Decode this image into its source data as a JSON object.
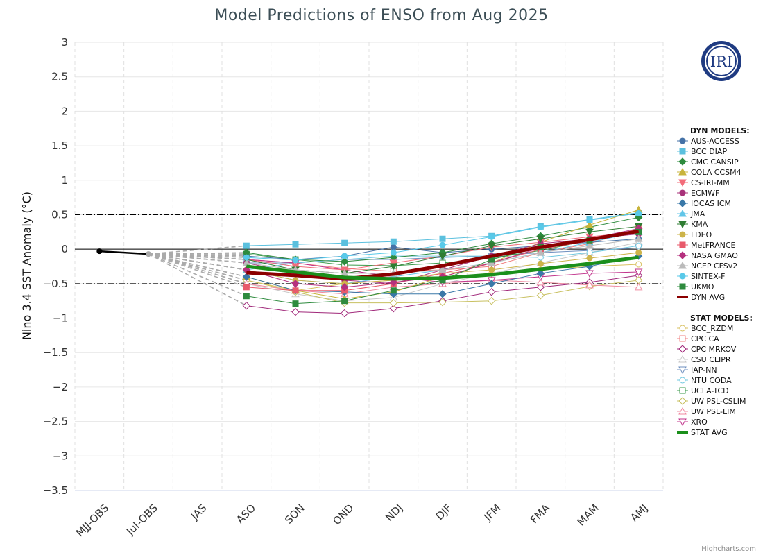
{
  "chart_data": {
    "type": "line",
    "title": "Model Predictions of ENSO from Aug 2025",
    "ylabel": "Nino 3.4 SST Anomaly (°C)",
    "ylim": [
      -3.5,
      3
    ],
    "yticks": [
      "3",
      "2.5",
      "2",
      "1.5",
      "1",
      "0.5",
      "0",
      "−0.5",
      "−1",
      "−1.5",
      "−2",
      "−2.5",
      "−3",
      "−3.5"
    ],
    "ytick_values": [
      3,
      2.5,
      2,
      1.5,
      1,
      0.5,
      0,
      -0.5,
      -1,
      -1.5,
      -2,
      -2.5,
      -3,
      -3.5
    ],
    "reference_lines": [
      0.5,
      -0.5
    ],
    "categories": [
      "MJJ-OBS",
      "Jul-OBS",
      "JAS",
      "ASO",
      "SON",
      "OND",
      "NDJ",
      "DJF",
      "JFM",
      "FMA",
      "MAM",
      "AMJ"
    ],
    "observed": {
      "x": [
        0,
        1
      ],
      "values": [
        -0.03,
        -0.07
      ]
    },
    "dyn_header": "DYN MODELS:",
    "stat_header": "STAT MODELS:",
    "dyn_series": [
      {
        "name": "AUS-ACCESS",
        "color": "#4572a7",
        "marker": "circle",
        "values": [
          -0.1,
          -0.15,
          -0.1,
          0.03,
          -0.05,
          0,
          0.05,
          0.1,
          0.15
        ]
      },
      {
        "name": "BCC DIAP",
        "color": "#5bc0de",
        "marker": "square",
        "values": [
          0.05,
          0.07,
          0.09,
          0.11,
          0.15,
          0.19,
          0.33,
          0.43,
          0.53
        ]
      },
      {
        "name": "CMC CANSIP",
        "color": "#2e8b3e",
        "marker": "diamond",
        "values": [
          -0.05,
          -0.15,
          -0.18,
          -0.12,
          -0.05,
          0.08,
          0.19,
          0.32,
          0.46
        ]
      },
      {
        "name": "COLA CCSM4",
        "color": "#c8b43c",
        "marker": "triangle",
        "values": [
          -0.4,
          -0.6,
          -0.72,
          -0.62,
          -0.4,
          -0.2,
          0.1,
          0.35,
          0.57
        ]
      },
      {
        "name": "CS-IRI-MM",
        "color": "#f26c7a",
        "marker": "triangle-down",
        "values": [
          -0.15,
          -0.25,
          -0.3,
          -0.2,
          -0.1,
          0.03,
          0.1,
          0.18,
          0.25
        ]
      },
      {
        "name": "ECMWF",
        "color": "#a8327a",
        "marker": "circle",
        "values": [
          -0.2,
          -0.35,
          -0.45,
          -0.5,
          -0.3,
          -0.1,
          0.08,
          0.15,
          0.22
        ]
      },
      {
        "name": "IOCAS ICM",
        "color": "#3a78a8",
        "marker": "diamond",
        "values": [
          -0.4,
          -0.6,
          -0.62,
          -0.65,
          -0.65,
          -0.5,
          -0.35,
          -0.25,
          -0.1
        ]
      },
      {
        "name": "JMA",
        "color": "#62c6e8",
        "marker": "triangle",
        "values": [
          -0.3,
          -0.45,
          -0.5,
          -0.4,
          -0.3,
          -0.2,
          -0.05,
          0.1,
          0.25
        ]
      },
      {
        "name": "KMA",
        "color": "#2e7d32",
        "marker": "triangle-down",
        "values": [
          -0.15,
          -0.3,
          -0.35,
          -0.25,
          -0.1,
          0.05,
          0.15,
          0.25,
          0.33
        ]
      },
      {
        "name": "LDEO",
        "color": "#cdb44a",
        "marker": "circle",
        "values": [
          -0.3,
          -0.45,
          -0.5,
          -0.45,
          -0.35,
          -0.3,
          -0.21,
          -0.13,
          -0.05
        ]
      },
      {
        "name": "MetFRANCE",
        "color": "#e85a6b",
        "marker": "square",
        "values": [
          -0.55,
          -0.6,
          -0.6,
          -0.5,
          -0.35,
          -0.2,
          0.0,
          0.12,
          0.28
        ]
      },
      {
        "name": "NASA GMAO",
        "color": "#b5317e",
        "marker": "diamond",
        "values": [
          -0.3,
          -0.5,
          -0.55,
          -0.48,
          -0.4,
          -0.2,
          0.02,
          0.15,
          0.3
        ]
      },
      {
        "name": "NCEP CFSv2",
        "color": "#bbbbbb",
        "marker": "triangle",
        "values": [
          -0.2,
          -0.3,
          -0.35,
          -0.35,
          -0.3,
          -0.2,
          -0.05,
          0.05,
          0.15
        ]
      },
      {
        "name": "SINTEX-F",
        "color": "#59c9e9",
        "marker": "circle",
        "values": [
          -0.12,
          -0.16,
          -0.1,
          -0.05,
          0.06,
          0.18,
          0.32,
          0.42,
          0.52
        ]
      },
      {
        "name": "UKMO",
        "color": "#2e8b3e",
        "marker": "square",
        "values": [
          -0.68,
          -0.79,
          -0.75,
          -0.6,
          -0.45,
          -0.15,
          0.03,
          0.13,
          0.25
        ]
      }
    ],
    "dyn_avg": {
      "name": "DYN AVG",
      "color": "#8b0000",
      "values": [
        -0.34,
        -0.38,
        -0.43,
        -0.36,
        -0.24,
        -0.1,
        0.03,
        0.14,
        0.26
      ]
    },
    "stat_series": [
      {
        "name": "BCC_RZDM",
        "color": "#d8c060",
        "marker": "circle",
        "values": [
          -0.45,
          -0.6,
          -0.5,
          -0.45,
          -0.42,
          -0.35,
          -0.3,
          -0.25,
          -0.22
        ]
      },
      {
        "name": "CPC CA",
        "color": "#f08080",
        "marker": "square",
        "values": [
          -0.15,
          -0.2,
          -0.28,
          -0.32,
          -0.3,
          -0.25,
          -0.05,
          0.08,
          0.3
        ]
      },
      {
        "name": "CPC MRKOV",
        "color": "#a0287a",
        "marker": "diamond",
        "values": [
          -0.82,
          -0.91,
          -0.93,
          -0.86,
          -0.75,
          -0.62,
          -0.55,
          -0.48,
          -0.38
        ]
      },
      {
        "name": "CSU CLIPR",
        "color": "#c8c8c8",
        "marker": "triangle",
        "values": [
          -0.5,
          -0.65,
          -0.75,
          -0.7,
          -0.5,
          -0.35,
          -0.2,
          -0.05,
          0.1
        ]
      },
      {
        "name": "IAP-NN",
        "color": "#6e8fbf",
        "marker": "triangle-down",
        "values": [
          -0.2,
          -0.2,
          -0.15,
          -0.15,
          -0.12,
          -0.1,
          -0.05,
          -0.02,
          0.02
        ]
      },
      {
        "name": "NTU CODA",
        "color": "#70c8e0",
        "marker": "circle",
        "values": [
          -0.3,
          -0.2,
          -0.15,
          -0.1,
          -0.1,
          -0.1,
          -0.12,
          -0.05,
          0.05
        ]
      },
      {
        "name": "UCLA-TCD",
        "color": "#3a9a4a",
        "marker": "square",
        "values": [
          -0.07,
          -0.15,
          -0.23,
          -0.24,
          -0.2,
          -0.13,
          -0.02,
          0.13,
          0.26
        ]
      },
      {
        "name": "UW PSL-CSLIM",
        "color": "#c8c060",
        "marker": "diamond",
        "values": [
          -0.45,
          -0.62,
          -0.78,
          -0.78,
          -0.77,
          -0.75,
          -0.67,
          -0.54,
          -0.45
        ]
      },
      {
        "name": "UW PSL-LIM",
        "color": "#f08aa0",
        "marker": "triangle",
        "values": [
          -0.5,
          -0.6,
          -0.65,
          -0.55,
          -0.5,
          -0.45,
          -0.48,
          -0.52,
          -0.55
        ]
      },
      {
        "name": "XRO",
        "color": "#c0308a",
        "marker": "triangle-down",
        "values": [
          -0.15,
          -0.2,
          -0.3,
          -0.4,
          -0.48,
          -0.45,
          -0.4,
          -0.35,
          -0.33
        ]
      }
    ],
    "stat_avg": {
      "name": "STAT AVG",
      "color": "#1b8f1b",
      "values": [
        -0.25,
        -0.33,
        -0.41,
        -0.43,
        -0.42,
        -0.37,
        -0.29,
        -0.21,
        -0.12
      ]
    },
    "legend_position": "right",
    "grid": true
  },
  "credit": "Highcharts.com",
  "logo_text": "IRI"
}
